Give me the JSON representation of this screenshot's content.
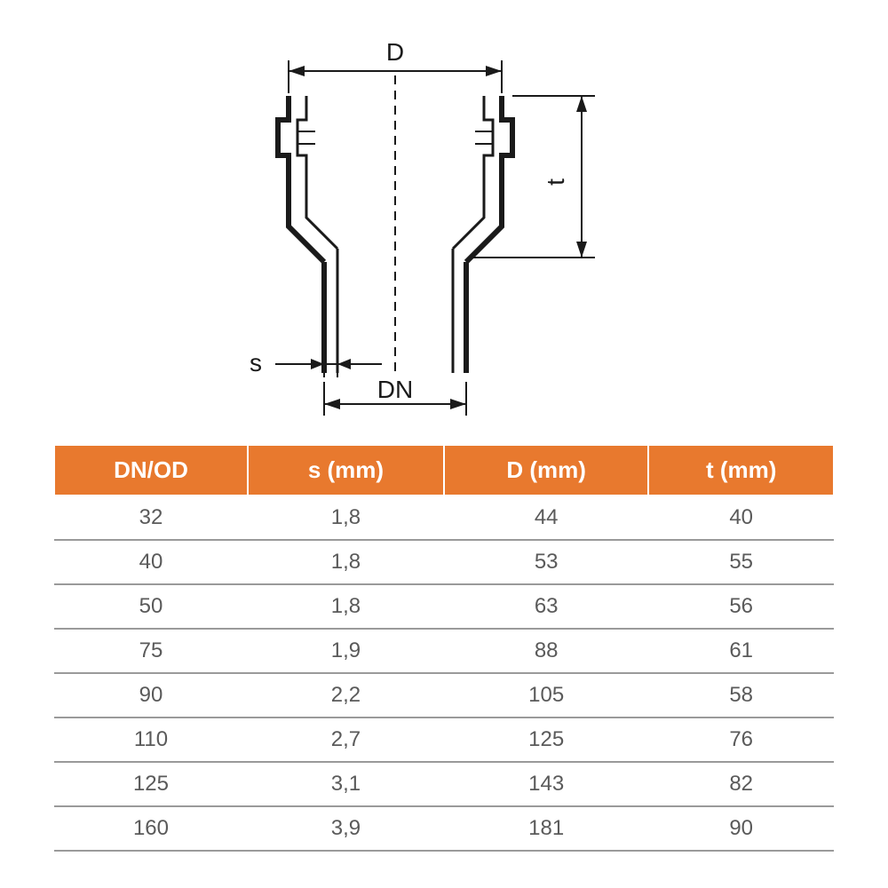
{
  "diagram": {
    "labels": {
      "D": "D",
      "t": "t",
      "s": "s",
      "DN": "DN"
    },
    "stroke_color": "#1a1a1a",
    "stroke_thick": 6,
    "stroke_thin": 2,
    "dash_pattern": "8,6"
  },
  "table": {
    "header_bg": "#e8792e",
    "header_fg": "#ffffff",
    "cell_fg": "#5a5a5a",
    "border_color": "#9a9a9a",
    "columns": [
      "DN/OD",
      "s (mm)",
      "D (mm)",
      "t (mm)"
    ],
    "rows": [
      [
        "32",
        "1,8",
        "44",
        "40"
      ],
      [
        "40",
        "1,8",
        "53",
        "55"
      ],
      [
        "50",
        "1,8",
        "63",
        "56"
      ],
      [
        "75",
        "1,9",
        "88",
        "61"
      ],
      [
        "90",
        "2,2",
        "105",
        "58"
      ],
      [
        "110",
        "2,7",
        "125",
        "76"
      ],
      [
        "125",
        "3,1",
        "143",
        "82"
      ],
      [
        "160",
        "3,9",
        "181",
        "90"
      ]
    ]
  }
}
